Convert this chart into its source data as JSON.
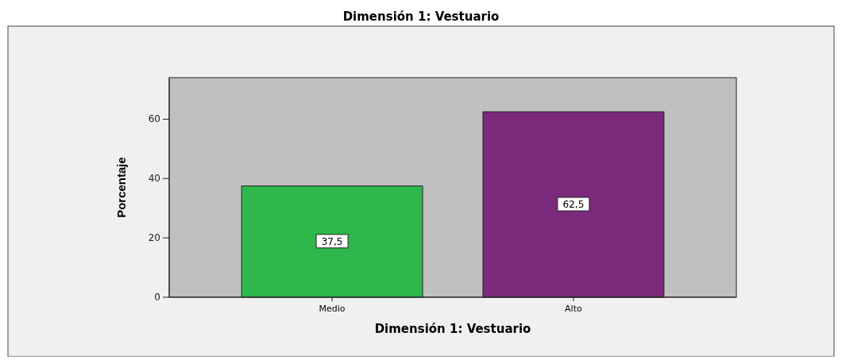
{
  "chart_data": {
    "type": "bar",
    "title": "Dimensión 1: Vestuario",
    "xlabel": "Dimensión 1: Vestuario",
    "ylabel": "Porcentaje",
    "categories": [
      "Medio",
      "Alto"
    ],
    "values": [
      37.5,
      62.5
    ],
    "colors": [
      "#2eb84b",
      "#7b2a7c"
    ],
    "value_labels": [
      "37,5",
      "62,5"
    ],
    "ylim": [
      0,
      74
    ],
    "yticks": [
      0,
      20,
      40,
      60
    ],
    "grid": false
  }
}
